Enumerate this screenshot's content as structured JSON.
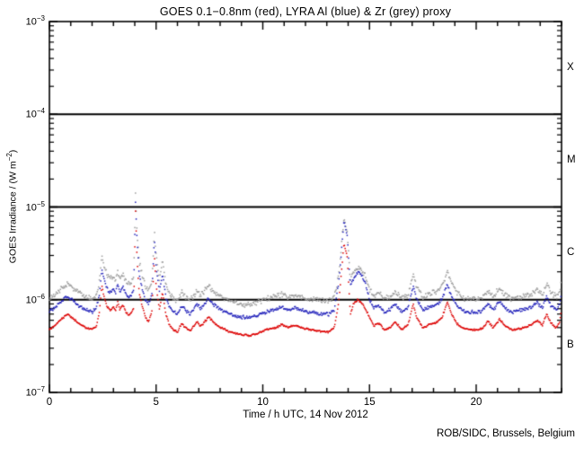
{
  "credit": "ROB/SIDC, Brussels, Belgium",
  "chart_data": {
    "type": "scatter",
    "title": "GOES 0.1−0.8nm (red), LYRA Al (blue) & Zr (grey) proxy",
    "xlabel": "Time / h UTC, 14 Nov 2012",
    "ylabel": {
      "pre": "GOES Irradiance / (W m",
      "sup": "−2",
      "post": ")"
    },
    "x_range": [
      0,
      24
    ],
    "x_major_ticks": [
      0,
      5,
      10,
      15,
      20
    ],
    "x_minor_step": 1,
    "y_log_range": [
      -7,
      -3
    ],
    "y_tick_exponents": [
      -3,
      -4,
      -5,
      -6,
      -7
    ],
    "threshold_lines": [
      0.0001,
      1e-05,
      1e-06
    ],
    "flare_classes": [
      {
        "label": "X",
        "center_exponent": -3.5
      },
      {
        "label": "M",
        "center_exponent": -4.5
      },
      {
        "label": "C",
        "center_exponent": -5.5
      },
      {
        "label": "B",
        "center_exponent": -6.5
      }
    ],
    "grid": false,
    "legend": "in title",
    "y_scale": 1e-07,
    "x": [
      0,
      0.3,
      0.6,
      0.85,
      1.1,
      1.4,
      1.7,
      2.0,
      2.2,
      2.35,
      2.45,
      2.55,
      2.7,
      2.85,
      3.0,
      3.1,
      3.2,
      3.3,
      3.45,
      3.6,
      3.75,
      3.95,
      4.03,
      4.1,
      4.2,
      4.35,
      4.5,
      4.65,
      4.8,
      4.92,
      5.0,
      5.15,
      5.3,
      5.45,
      5.6,
      5.8,
      6.0,
      6.2,
      6.35,
      6.6,
      6.9,
      7.1,
      7.45,
      7.6,
      7.9,
      8.2,
      8.6,
      9.0,
      9.4,
      9.8,
      10.2,
      10.6,
      10.9,
      11.2,
      11.5,
      11.9,
      12.3,
      12.7,
      13.1,
      13.35,
      13.55,
      13.8,
      13.95,
      14.1,
      14.25,
      14.45,
      14.6,
      14.8,
      15.0,
      15.2,
      15.35,
      15.5,
      15.7,
      15.95,
      16.2,
      16.5,
      16.8,
      17.05,
      17.2,
      17.5,
      17.8,
      18.1,
      18.4,
      18.65,
      18.8,
      19.1,
      19.4,
      19.7,
      20.0,
      20.3,
      20.55,
      20.8,
      21.1,
      21.35,
      21.7,
      22.0,
      22.3,
      22.6,
      22.85,
      23.1,
      23.3,
      23.5,
      23.75,
      23.9,
      24.0
    ],
    "series": [
      {
        "name": "GOES 0.1-0.8nm",
        "color": "#dd0000",
        "values": [
          4.8,
          5.4,
          6.3,
          7.0,
          6.3,
          5.5,
          5.0,
          4.8,
          5.2,
          7.5,
          14.5,
          11,
          8.5,
          7.8,
          8.5,
          7.6,
          9.5,
          7.8,
          8.8,
          7.2,
          6.8,
          8.0,
          95,
          30,
          12,
          8.5,
          6.5,
          5.8,
          7.5,
          30,
          14,
          8,
          12,
          7,
          5.5,
          4.8,
          4.5,
          5.6,
          5.0,
          4.6,
          5.8,
          5.2,
          6.5,
          6.0,
          5.2,
          4.8,
          4.4,
          4.2,
          4.1,
          4.4,
          4.8,
          5.0,
          5.4,
          5.0,
          5.3,
          4.9,
          4.7,
          4.6,
          4.5,
          5.0,
          9,
          40,
          30,
          7,
          9,
          10,
          9.5,
          8,
          6.5,
          5.2,
          5.6,
          5.4,
          4.7,
          5.0,
          5.8,
          4.8,
          5.3,
          9.0,
          6.5,
          5.0,
          5.4,
          5.6,
          6.5,
          9.5,
          7.5,
          5.5,
          4.9,
          4.8,
          4.7,
          4.9,
          5.9,
          5.0,
          6.2,
          5.2,
          4.7,
          4.9,
          5.0,
          5.4,
          6.0,
          5.3,
          7.0,
          5.6,
          5.0,
          5.6,
          8.0
        ]
      },
      {
        "name": "LYRA Al proxy",
        "color": "#2222bb",
        "values": [
          7.4,
          8.4,
          9.8,
          10.8,
          9.8,
          8.5,
          7.8,
          7.4,
          8.1,
          11.6,
          22,
          17,
          13,
          12,
          13,
          12,
          15,
          12,
          14,
          11,
          10.5,
          12.4,
          115,
          47,
          19,
          13,
          10,
          9.0,
          11.6,
          47,
          22,
          12.4,
          19,
          10.9,
          8.5,
          7.4,
          7.0,
          8.7,
          7.8,
          7.1,
          9.0,
          8.1,
          10.1,
          9.3,
          8.1,
          7.4,
          6.8,
          6.5,
          6.4,
          6.8,
          7.4,
          7.8,
          8.4,
          7.8,
          8.2,
          7.6,
          7.3,
          7.1,
          7.0,
          7.8,
          15,
          68,
          51,
          14,
          17,
          20,
          19,
          15,
          10,
          8.1,
          8.7,
          8.4,
          7.3,
          7.8,
          9.0,
          7.4,
          8.2,
          14,
          10.1,
          7.8,
          8.4,
          8.7,
          10.1,
          14.7,
          11.6,
          8.5,
          7.6,
          7.4,
          7.3,
          7.6,
          9.1,
          7.8,
          9.6,
          8.1,
          7.3,
          7.6,
          7.8,
          8.4,
          9.3,
          8.2,
          10.9,
          8.7,
          7.8,
          8.7,
          12.4
        ]
      },
      {
        "name": "LYRA Zr proxy",
        "color": "#9c9c9c",
        "values": [
          10.3,
          11.6,
          13.5,
          15,
          13.5,
          11.8,
          10.8,
          10.3,
          11.2,
          16,
          31,
          24,
          18,
          17,
          18,
          16,
          20,
          17,
          19,
          15.5,
          14.6,
          17,
          145,
          55,
          26,
          18,
          14,
          12.5,
          16,
          55,
          30,
          17,
          26,
          15,
          11.8,
          10.3,
          9.7,
          12,
          10.8,
          9.9,
          12.5,
          11.2,
          14,
          12.9,
          11.2,
          10.3,
          9.5,
          9.0,
          8.8,
          9.5,
          10.3,
          10.8,
          11.6,
          10.8,
          11.4,
          10.5,
          10.1,
          9.9,
          9.7,
          10.8,
          18,
          76,
          57,
          17,
          20,
          23,
          22,
          18,
          13,
          11,
          12,
          11.6,
          10.1,
          10.8,
          12.5,
          10.3,
          11.4,
          19,
          14,
          10.8,
          11.6,
          12,
          14,
          20,
          16,
          11.8,
          10.5,
          10.3,
          10.1,
          10.5,
          12.7,
          10.8,
          13.3,
          11.2,
          10.1,
          10.5,
          10.8,
          11.6,
          12.9,
          11.4,
          15,
          12,
          10.8,
          12,
          17
        ]
      }
    ]
  }
}
